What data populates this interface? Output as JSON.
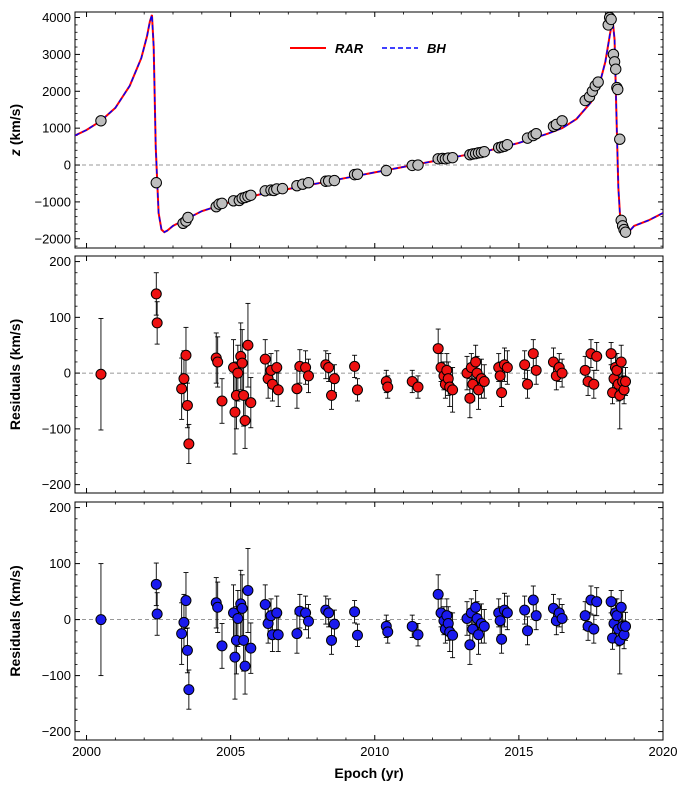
{
  "colors": {
    "rar": "#ff0000",
    "bh": "#0000ff",
    "obs_fill": "#bebebe",
    "res_rar_fill": "#ee1111",
    "res_bh_fill": "#1a1aee"
  },
  "shared_x": {
    "label": "Epoch (yr)",
    "range": [
      1999.6,
      2020.0
    ],
    "ticks": [
      2000,
      2005,
      2010,
      2015,
      2020
    ]
  },
  "chart_data": [
    {
      "type": "line",
      "panel": "top",
      "ylabel": "z (km/s)",
      "ylim": [
        -2250,
        4150
      ],
      "yticks": [
        4000,
        3000,
        2000,
        1000,
        0,
        -1000,
        -2000
      ],
      "ytick_labels": [
        "4000",
        "3000",
        "2000",
        "1000",
        "0",
        "−1000",
        "−2000"
      ],
      "legend": {
        "position": "top-center",
        "entries": [
          "RAR",
          "BH"
        ]
      },
      "series": [
        {
          "name": "RAR",
          "style": "solid",
          "x": [
            1999.6,
            2000.0,
            2000.5,
            2001.0,
            2001.5,
            2001.9,
            2002.1,
            2002.2,
            2002.27,
            2002.33,
            2002.4,
            2002.5,
            2002.6,
            2002.7,
            2002.8,
            2003.0,
            2003.5,
            2004.0,
            2005.0,
            2006.0,
            2007.0,
            2008.0,
            2009.0,
            2010.0,
            2011.0,
            2012.0,
            2013.0,
            2014.0,
            2015.0,
            2016.0,
            2016.5,
            2017.0,
            2017.5,
            2017.8,
            2018.0,
            2018.15,
            2018.25,
            2018.32,
            2018.38,
            2018.45,
            2018.52,
            2018.6,
            2018.7,
            2018.85,
            2019.0,
            2019.5,
            2020.0
          ],
          "values": [
            800,
            950,
            1200,
            1550,
            2150,
            2900,
            3500,
            3900,
            4070,
            3200,
            500,
            -1300,
            -1750,
            -1820,
            -1780,
            -1650,
            -1450,
            -1250,
            -1000,
            -800,
            -650,
            -500,
            -350,
            -200,
            -50,
            100,
            250,
            400,
            600,
            850,
            1000,
            1250,
            1700,
            2200,
            2800,
            3500,
            3950,
            3400,
            1500,
            -600,
            -1500,
            -1750,
            -1820,
            -1780,
            -1650,
            -1500,
            -1300
          ]
        },
        {
          "name": "BH",
          "style": "dashed",
          "x": [
            1999.6,
            2000.0,
            2000.5,
            2001.0,
            2001.5,
            2001.9,
            2002.1,
            2002.2,
            2002.27,
            2002.33,
            2002.4,
            2002.5,
            2002.6,
            2002.7,
            2002.8,
            2003.0,
            2003.5,
            2004.0,
            2005.0,
            2006.0,
            2007.0,
            2008.0,
            2009.0,
            2010.0,
            2011.0,
            2012.0,
            2013.0,
            2014.0,
            2015.0,
            2016.0,
            2016.5,
            2017.0,
            2017.5,
            2017.8,
            2018.0,
            2018.15,
            2018.25,
            2018.32,
            2018.38,
            2018.45,
            2018.52,
            2018.6,
            2018.7,
            2018.85,
            2019.0,
            2019.5,
            2020.0
          ],
          "values": [
            800,
            950,
            1200,
            1550,
            2150,
            2900,
            3500,
            3900,
            4070,
            3200,
            500,
            -1300,
            -1750,
            -1820,
            -1780,
            -1650,
            -1450,
            -1250,
            -1000,
            -800,
            -650,
            -500,
            -350,
            -200,
            -50,
            100,
            250,
            400,
            600,
            850,
            1000,
            1250,
            1700,
            2200,
            2800,
            3500,
            3950,
            3400,
            1500,
            -600,
            -1500,
            -1750,
            -1820,
            -1780,
            -1650,
            -1500,
            -1300
          ]
        }
      ],
      "points": {
        "x": [
          2000.5,
          2002.42,
          2003.35,
          2003.45,
          2003.52,
          2004.5,
          2004.6,
          2004.7,
          2005.1,
          2005.3,
          2005.4,
          2005.5,
          2005.6,
          2005.7,
          2006.2,
          2006.4,
          2006.5,
          2006.6,
          2006.8,
          2007.3,
          2007.5,
          2007.7,
          2008.3,
          2008.4,
          2008.6,
          2009.3,
          2009.4,
          2010.4,
          2011.3,
          2011.5,
          2012.2,
          2012.35,
          2012.45,
          2012.55,
          2012.7,
          2013.3,
          2013.4,
          2013.5,
          2013.6,
          2013.7,
          2013.8,
          2014.3,
          2014.4,
          2014.5,
          2014.6,
          2015.3,
          2015.5,
          2015.6,
          2016.2,
          2016.3,
          2016.5,
          2017.3,
          2017.45,
          2017.55,
          2017.65,
          2017.75,
          2018.1,
          2018.15,
          2018.2,
          2018.28,
          2018.32,
          2018.36,
          2018.4,
          2018.43,
          2018.5,
          2018.55,
          2018.6,
          2018.65,
          2018.7
        ],
        "values": [
          1200,
          -480,
          -1580,
          -1520,
          -1420,
          -1130,
          -1060,
          -1040,
          -970,
          -960,
          -900,
          -880,
          -850,
          -820,
          -700,
          -680,
          -690,
          -650,
          -640,
          -560,
          -520,
          -480,
          -440,
          -430,
          -420,
          -260,
          -250,
          -150,
          -10,
          0,
          170,
          180,
          170,
          190,
          200,
          280,
          300,
          310,
          330,
          340,
          360,
          470,
          490,
          510,
          550,
          730,
          800,
          850,
          1050,
          1100,
          1200,
          1750,
          1850,
          2000,
          2150,
          2250,
          3800,
          4000,
          3950,
          3000,
          2800,
          2600,
          2100,
          2050,
          700,
          -1500,
          -1650,
          -1750,
          -1820
        ]
      }
    },
    {
      "type": "scatter",
      "panel": "middle",
      "model": "RAR",
      "ylabel": "Residuals (km/s)",
      "ylim": [
        -215,
        210
      ],
      "yticks": [
        200,
        100,
        0,
        -100,
        -200
      ],
      "ytick_labels": [
        "200",
        "100",
        "0",
        "−100",
        "−200"
      ],
      "x": [
        2000.5,
        2002.42,
        2002.45,
        2003.3,
        2003.38,
        2003.45,
        2003.5,
        2003.55,
        2004.5,
        2004.55,
        2004.7,
        2005.1,
        2005.15,
        2005.2,
        2005.25,
        2005.35,
        2005.4,
        2005.45,
        2005.5,
        2005.6,
        2005.7,
        2006.2,
        2006.3,
        2006.4,
        2006.45,
        2006.6,
        2006.65,
        2007.3,
        2007.4,
        2007.6,
        2007.7,
        2008.3,
        2008.4,
        2008.5,
        2008.6,
        2009.3,
        2009.4,
        2010.4,
        2010.45,
        2011.3,
        2011.5,
        2012.2,
        2012.3,
        2012.4,
        2012.45,
        2012.5,
        2012.55,
        2012.6,
        2012.7,
        2013.2,
        2013.3,
        2013.35,
        2013.4,
        2013.5,
        2013.55,
        2013.6,
        2013.7,
        2013.8,
        2014.3,
        2014.35,
        2014.4,
        2014.5,
        2014.6,
        2015.2,
        2015.3,
        2015.5,
        2015.6,
        2016.2,
        2016.3,
        2016.4,
        2016.5,
        2017.3,
        2017.4,
        2017.5,
        2017.6,
        2017.7,
        2018.2,
        2018.25,
        2018.3,
        2018.35,
        2018.4,
        2018.45,
        2018.5,
        2018.55,
        2018.6,
        2018.65,
        2018.7
      ],
      "values": [
        -2,
        142,
        90,
        -28,
        -10,
        32,
        -58,
        -127,
        27,
        20,
        -50,
        10,
        -70,
        -40,
        0,
        30,
        18,
        -40,
        -85,
        50,
        -53,
        25,
        -10,
        5,
        -20,
        10,
        -30,
        -28,
        12,
        10,
        -5,
        15,
        10,
        -40,
        -10,
        12,
        -30,
        -15,
        -25,
        -15,
        -25,
        44,
        10,
        -5,
        -20,
        5,
        -10,
        -25,
        -30,
        0,
        -45,
        10,
        -20,
        20,
        0,
        -30,
        -10,
        -15,
        10,
        -5,
        -35,
        15,
        10,
        15,
        -20,
        35,
        5,
        20,
        -5,
        10,
        0,
        5,
        -15,
        35,
        -20,
        30,
        35,
        -35,
        -10,
        10,
        5,
        -20,
        -40,
        20,
        -15,
        -30,
        -15
      ],
      "errors": [
        100,
        38,
        38,
        55,
        50,
        50,
        40,
        35,
        45,
        45,
        40,
        50,
        75,
        60,
        50,
        60,
        60,
        55,
        50,
        75,
        45,
        35,
        35,
        30,
        30,
        30,
        30,
        35,
        30,
        30,
        30,
        25,
        25,
        25,
        25,
        20,
        20,
        20,
        20,
        20,
        20,
        35,
        25,
        25,
        25,
        30,
        30,
        35,
        40,
        30,
        35,
        25,
        30,
        30,
        30,
        35,
        35,
        30,
        25,
        25,
        25,
        30,
        30,
        25,
        25,
        25,
        25,
        25,
        25,
        25,
        25,
        25,
        25,
        25,
        25,
        25,
        20,
        20,
        25,
        25,
        30,
        30,
        60,
        30,
        30,
        25,
        25
      ]
    },
    {
      "type": "scatter",
      "panel": "bottom",
      "model": "BH",
      "xlabel": "Epoch (yr)",
      "ylabel": "Residuals (km/s)",
      "ylim": [
        -215,
        210
      ],
      "yticks": [
        200,
        100,
        0,
        -100,
        -200
      ],
      "ytick_labels": [
        "200",
        "100",
        "0",
        "−100",
        "−200"
      ],
      "x": [
        2000.5,
        2002.42,
        2002.45,
        2003.3,
        2003.38,
        2003.45,
        2003.5,
        2003.55,
        2004.5,
        2004.55,
        2004.7,
        2005.1,
        2005.15,
        2005.2,
        2005.25,
        2005.35,
        2005.4,
        2005.45,
        2005.5,
        2005.6,
        2005.7,
        2006.2,
        2006.3,
        2006.4,
        2006.45,
        2006.6,
        2006.65,
        2007.3,
        2007.4,
        2007.6,
        2007.7,
        2008.3,
        2008.4,
        2008.5,
        2008.6,
        2009.3,
        2009.4,
        2010.4,
        2010.45,
        2011.3,
        2011.5,
        2012.2,
        2012.3,
        2012.4,
        2012.45,
        2012.5,
        2012.55,
        2012.6,
        2012.7,
        2013.2,
        2013.3,
        2013.35,
        2013.4,
        2013.5,
        2013.55,
        2013.6,
        2013.7,
        2013.8,
        2014.3,
        2014.35,
        2014.4,
        2014.5,
        2014.6,
        2015.2,
        2015.3,
        2015.5,
        2015.6,
        2016.2,
        2016.3,
        2016.4,
        2016.5,
        2017.3,
        2017.4,
        2017.5,
        2017.6,
        2017.7,
        2018.2,
        2018.25,
        2018.3,
        2018.35,
        2018.4,
        2018.45,
        2018.5,
        2018.55,
        2018.6,
        2018.65,
        2018.7
      ],
      "values": [
        0,
        63,
        10,
        -25,
        -5,
        34,
        -55,
        -125,
        30,
        22,
        -47,
        12,
        -67,
        -37,
        2,
        28,
        20,
        -37,
        -83,
        52,
        -51,
        27,
        -7,
        7,
        -27,
        12,
        -27,
        -25,
        15,
        12,
        -3,
        17,
        12,
        -37,
        -8,
        14,
        -28,
        -12,
        -22,
        -12,
        -27,
        45,
        12,
        -2,
        -17,
        7,
        -7,
        -22,
        -28,
        2,
        -45,
        12,
        -17,
        22,
        2,
        -27,
        -7,
        -12,
        12,
        -2,
        -35,
        17,
        12,
        17,
        -20,
        35,
        7,
        20,
        -2,
        12,
        2,
        7,
        -12,
        35,
        -17,
        32,
        32,
        -33,
        -7,
        12,
        7,
        -17,
        -37,
        22,
        -12,
        -27,
        -12
      ],
      "errors": [
        100,
        38,
        38,
        55,
        50,
        50,
        40,
        35,
        45,
        45,
        40,
        50,
        75,
        60,
        50,
        60,
        60,
        55,
        50,
        75,
        45,
        35,
        35,
        30,
        30,
        30,
        30,
        35,
        30,
        30,
        30,
        25,
        25,
        25,
        25,
        20,
        20,
        20,
        20,
        20,
        20,
        35,
        25,
        25,
        25,
        30,
        30,
        35,
        40,
        30,
        35,
        25,
        30,
        30,
        30,
        35,
        35,
        30,
        25,
        25,
        25,
        30,
        30,
        25,
        25,
        25,
        25,
        25,
        25,
        25,
        25,
        25,
        25,
        25,
        25,
        25,
        20,
        20,
        25,
        25,
        30,
        30,
        60,
        30,
        30,
        25,
        25
      ]
    }
  ]
}
